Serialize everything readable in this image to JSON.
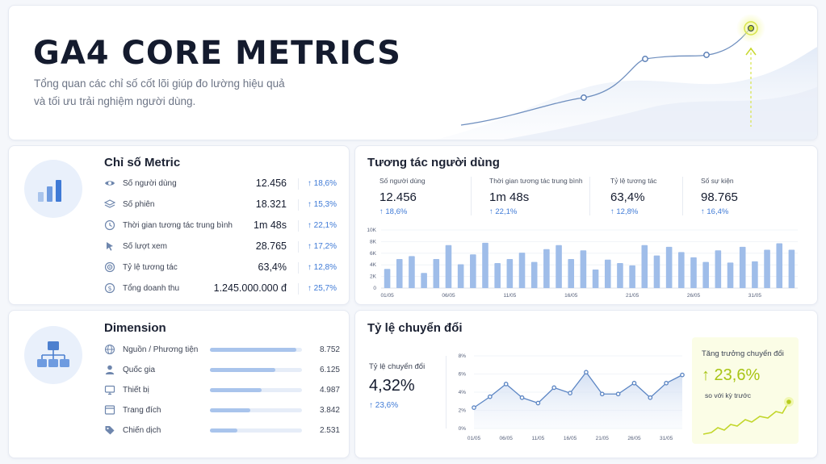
{
  "hero": {
    "title": "GA4 CORE METRICS",
    "subtitle_line1": "Tổng quan các chỉ số cốt lõi giúp đo lường hiệu quả",
    "subtitle_line2": "và tối ưu trải nghiệm người dùng."
  },
  "metric_card": {
    "title": "Chỉ số Metric",
    "rows": [
      {
        "icon": "eye-icon",
        "label": "Số người dùng",
        "value": "12.456",
        "change": "↑ 18,6%"
      },
      {
        "icon": "layers-icon",
        "label": "Số phiên",
        "value": "18.321",
        "change": "↑ 15,3%"
      },
      {
        "icon": "clock-icon",
        "label": "Thời gian tương tác trung bình",
        "value": "1m 48s",
        "change": "↑ 22,1%"
      },
      {
        "icon": "cursor-icon",
        "label": "Số lượt xem",
        "value": "28.765",
        "change": "↑ 17,2%"
      },
      {
        "icon": "target-icon",
        "label": "Tỷ lệ tương tác",
        "value": "63,4%",
        "change": "↑ 12,8%"
      },
      {
        "icon": "dollar-icon",
        "label": "Tổng doanh thu",
        "value": "1.245.000.000 đ",
        "change": "↑ 25,7%"
      }
    ]
  },
  "dimension_card": {
    "title": "Dimension",
    "rows": [
      {
        "icon": "globe-icon",
        "label": "Nguồn / Phương tiện",
        "value": "8.752",
        "ratio": 0.94
      },
      {
        "icon": "user-icon",
        "label": "Quốc gia",
        "value": "6.125",
        "ratio": 0.71
      },
      {
        "icon": "monitor-icon",
        "label": "Thiết bị",
        "value": "4.987",
        "ratio": 0.56
      },
      {
        "icon": "page-icon",
        "label": "Trang đích",
        "value": "3.842",
        "ratio": 0.44
      },
      {
        "icon": "tag-icon",
        "label": "Chiến dịch",
        "value": "2.531",
        "ratio": 0.3
      }
    ]
  },
  "engagement_card": {
    "title": "Tương tác người dùng",
    "kpis": [
      {
        "label": "Số người dùng",
        "value": "12.456",
        "change": "↑ 18,6%"
      },
      {
        "label": "Thời gian tương tác trung bình",
        "value": "1m 48s",
        "change": "↑ 22,1%"
      },
      {
        "label": "Tỷ lệ tương tác",
        "value": "63,4%",
        "change": "↑ 12,8%"
      },
      {
        "label": "Số sự kiện",
        "value": "98.765",
        "change": "↑ 16,4%"
      }
    ]
  },
  "conversion_card": {
    "title": "Tỷ lệ chuyển đổi",
    "label": "Tỷ lệ chuyển đổi",
    "value": "4,32%",
    "change": "↑ 23,6%",
    "growth": {
      "title": "Tăng trưởng chuyển đổi",
      "value": "↑ 23,6%",
      "subtitle": "so với kỳ trước"
    }
  },
  "colors": {
    "accent": "#3f7ad6",
    "bar": "#9fbde9",
    "line": "#5c86c4",
    "highlight": "#a8c414"
  },
  "chart_data": [
    {
      "type": "bar",
      "yticks": [
        "0",
        "2K",
        "4K",
        "6K",
        "8K",
        "10K"
      ],
      "ylim": [
        0,
        10000
      ],
      "xtick_labels": [
        "01/05",
        "06/05",
        "11/05",
        "16/05",
        "21/05",
        "26/05",
        "31/05"
      ],
      "values": [
        3300,
        5000,
        5500,
        2600,
        5000,
        7400,
        4100,
        5800,
        7800,
        4300,
        5000,
        6100,
        4500,
        6700,
        7400,
        5000,
        6500,
        3200,
        4900,
        4300,
        3900,
        7400,
        5600,
        7100,
        6200,
        5300,
        4500,
        6500,
        4400,
        7100,
        4600,
        6600,
        7700,
        6600
      ]
    },
    {
      "type": "line",
      "yticks": [
        "0%",
        "2%",
        "4%",
        "6%",
        "8%"
      ],
      "ylim": [
        0,
        8
      ],
      "xtick_labels": [
        "01/05",
        "06/05",
        "11/05",
        "16/05",
        "21/05",
        "26/05",
        "31/05"
      ],
      "values": [
        2.3,
        3.5,
        4.9,
        3.4,
        2.8,
        4.5,
        3.9,
        6.2,
        3.8,
        3.8,
        5.0,
        3.4,
        5.0,
        5.9
      ]
    }
  ]
}
